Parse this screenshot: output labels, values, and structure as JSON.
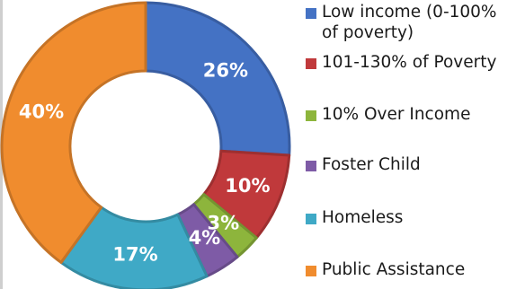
{
  "chart_data": {
    "type": "pie",
    "style": "donut",
    "title": "",
    "legend_position": "right",
    "categories": [
      "Low income (0-100% of poverty)",
      "101-130% of Poverty",
      "10% Over Income",
      "Foster Child",
      "Homeless",
      "Public Assistance"
    ],
    "values": [
      26,
      10,
      3,
      4,
      17,
      40
    ],
    "data_labels": [
      "26%",
      "10%",
      "3%",
      "4%",
      "17%",
      "40%"
    ],
    "colors": [
      "#4472C4",
      "#C0393B",
      "#8DB53C",
      "#7E5BA6",
      "#3FA9C6",
      "#F08C2E"
    ],
    "unit": "%"
  }
}
